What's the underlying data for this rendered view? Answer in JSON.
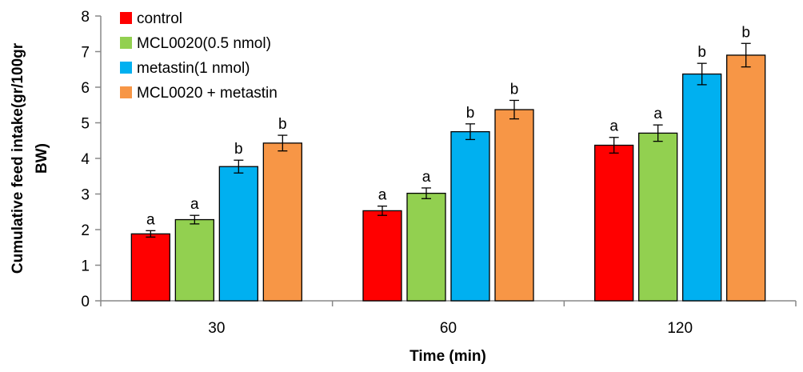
{
  "chart_data": {
    "type": "bar",
    "categories": [
      "30",
      "60",
      "120"
    ],
    "xlabel": "Time (min)",
    "ylabel_lines": [
      "Cumulative feed intake(gr/100gr",
      "BW)"
    ],
    "ylim": [
      0,
      8
    ],
    "yticks": [
      0,
      1,
      2,
      3,
      4,
      5,
      6,
      7,
      8
    ],
    "grid": false,
    "legend_position": "top-left",
    "series": [
      {
        "name": "control",
        "color": "#ff0000",
        "values": [
          1.88,
          2.53,
          4.37
        ],
        "errors": [
          0.09,
          0.13,
          0.22
        ],
        "labels": [
          "a",
          "a",
          "a"
        ]
      },
      {
        "name": "MCL0020(0.5 nmol)",
        "color": "#92d050",
        "values": [
          2.28,
          3.02,
          4.71
        ],
        "errors": [
          0.12,
          0.15,
          0.23
        ],
        "labels": [
          "a",
          "a",
          "a"
        ]
      },
      {
        "name": "metastin(1 nmol)",
        "color": "#00b0f0",
        "values": [
          3.77,
          4.75,
          6.37
        ],
        "errors": [
          0.18,
          0.22,
          0.3
        ],
        "labels": [
          "b",
          "b",
          "b"
        ]
      },
      {
        "name": "MCL0020 + metastin",
        "color": "#f79646",
        "values": [
          4.43,
          5.37,
          6.9
        ],
        "errors": [
          0.22,
          0.26,
          0.33
        ],
        "labels": [
          "b",
          "b",
          "b"
        ]
      }
    ]
  }
}
